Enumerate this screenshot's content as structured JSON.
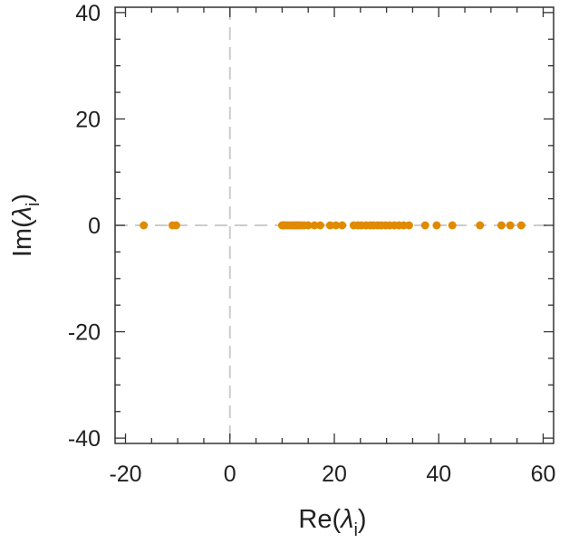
{
  "chart_data": {
    "type": "scatter",
    "title": "",
    "xlabel": "Re(λi)",
    "ylabel": "Im(λi)",
    "xlabel_parts": {
      "pre": "Re(",
      "sym": "λ",
      "sub": "i",
      "post": ")"
    },
    "ylabel_parts": {
      "pre": "Im(",
      "sym": "λ",
      "sub": "i",
      "post": ")"
    },
    "xlim": [
      -22,
      62
    ],
    "ylim": [
      -41,
      41
    ],
    "xticks": [
      -20,
      0,
      20,
      40,
      60
    ],
    "xtick_labels": [
      "-20",
      "0",
      "20",
      "40",
      "60"
    ],
    "yticks": [
      -40,
      -20,
      0,
      20,
      40
    ],
    "ytick_labels": [
      "-40",
      "-20",
      "0",
      "20",
      "40"
    ],
    "reference_lines": {
      "x": 0,
      "y": 0,
      "style": "dashed"
    },
    "grid": false,
    "marker_color": "#e08a00",
    "reference_line_color": "#cccccc",
    "points": [
      {
        "x": -16.5,
        "y": 0
      },
      {
        "x": -11.0,
        "y": 0
      },
      {
        "x": -10.3,
        "y": 0
      },
      {
        "x": 10.0,
        "y": 0
      },
      {
        "x": 10.3,
        "y": 0
      },
      {
        "x": 10.6,
        "y": 0
      },
      {
        "x": 11.0,
        "y": 0
      },
      {
        "x": 11.5,
        "y": 0
      },
      {
        "x": 12.0,
        "y": 0
      },
      {
        "x": 12.4,
        "y": 0
      },
      {
        "x": 12.8,
        "y": 0
      },
      {
        "x": 13.2,
        "y": 0
      },
      {
        "x": 13.6,
        "y": 0
      },
      {
        "x": 14.2,
        "y": 0
      },
      {
        "x": 15.0,
        "y": 0
      },
      {
        "x": 16.2,
        "y": 0
      },
      {
        "x": 17.3,
        "y": 0
      },
      {
        "x": 19.2,
        "y": 0
      },
      {
        "x": 20.3,
        "y": 0
      },
      {
        "x": 21.5,
        "y": 0
      },
      {
        "x": 23.7,
        "y": 0
      },
      {
        "x": 24.5,
        "y": 0
      },
      {
        "x": 25.2,
        "y": 0
      },
      {
        "x": 26.1,
        "y": 0
      },
      {
        "x": 26.9,
        "y": 0
      },
      {
        "x": 27.5,
        "y": 0
      },
      {
        "x": 28.3,
        "y": 0
      },
      {
        "x": 29.0,
        "y": 0
      },
      {
        "x": 29.8,
        "y": 0
      },
      {
        "x": 30.6,
        "y": 0
      },
      {
        "x": 31.5,
        "y": 0
      },
      {
        "x": 32.4,
        "y": 0
      },
      {
        "x": 33.3,
        "y": 0
      },
      {
        "x": 34.3,
        "y": 0
      },
      {
        "x": 37.4,
        "y": 0
      },
      {
        "x": 39.6,
        "y": 0
      },
      {
        "x": 42.6,
        "y": 0
      },
      {
        "x": 47.9,
        "y": 0
      },
      {
        "x": 52.0,
        "y": 0
      },
      {
        "x": 53.7,
        "y": 0
      },
      {
        "x": 55.8,
        "y": 0
      }
    ]
  }
}
